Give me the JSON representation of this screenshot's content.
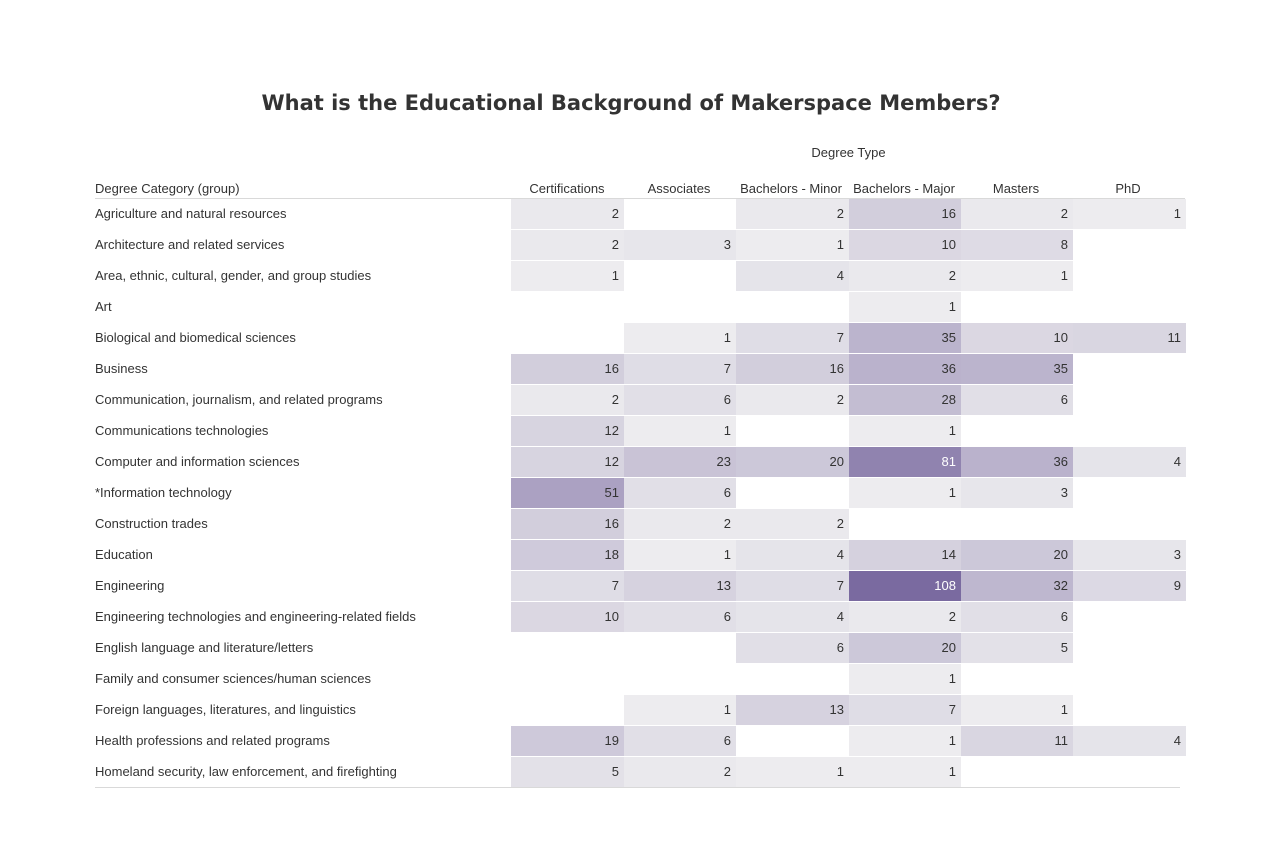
{
  "chart_data": {
    "type": "heatmap",
    "title": "What is the Educational Background of Makerspace Members?",
    "column_group_label": "Degree Type",
    "row_header_label": "Degree Category (group)",
    "columns": [
      "Certifications",
      "Associates",
      "Bachelors - Minor",
      "Bachelors - Major",
      "Masters",
      "PhD"
    ],
    "color_low": "#f1f1f2",
    "color_high": "#7a6aa0",
    "rows": [
      {
        "label": "Agriculture and natural resources",
        "values": [
          "2",
          "",
          "2",
          "16",
          "2",
          "1"
        ]
      },
      {
        "label": "Architecture and related services",
        "values": [
          "2",
          "3",
          "1",
          "10",
          "8",
          ""
        ]
      },
      {
        "label": "Area, ethnic, cultural, gender, and group studies",
        "values": [
          "1",
          "",
          "4",
          "2",
          "1",
          ""
        ]
      },
      {
        "label": "Art",
        "values": [
          "",
          "",
          "",
          "1",
          "",
          ""
        ]
      },
      {
        "label": "Biological and biomedical sciences",
        "values": [
          "",
          "1",
          "7",
          "35",
          "10",
          "11"
        ]
      },
      {
        "label": "Business",
        "values": [
          "16",
          "7",
          "16",
          "36",
          "35",
          ""
        ]
      },
      {
        "label": "Communication, journalism, and related programs",
        "values": [
          "2",
          "6",
          "2",
          "28",
          "6",
          ""
        ]
      },
      {
        "label": "Communications technologies",
        "values": [
          "12",
          "1",
          "",
          "1",
          "",
          ""
        ]
      },
      {
        "label": "Computer and information sciences",
        "values": [
          "12",
          "23",
          "20",
          "81",
          "36",
          "4"
        ]
      },
      {
        "label": "*Information technology",
        "values": [
          "51",
          "6",
          "",
          "1",
          "3",
          ""
        ]
      },
      {
        "label": "Construction trades",
        "values": [
          "16",
          "2",
          "2",
          "",
          "",
          ""
        ]
      },
      {
        "label": "Education",
        "values": [
          "18",
          "1",
          "4",
          "14",
          "20",
          "3"
        ]
      },
      {
        "label": "Engineering",
        "values": [
          "7",
          "13",
          "7",
          "108",
          "32",
          "9"
        ]
      },
      {
        "label": "Engineering technologies and engineering-related fields",
        "values": [
          "10",
          "6",
          "4",
          "2",
          "6",
          ""
        ]
      },
      {
        "label": "English language and literature/letters",
        "values": [
          "",
          "",
          "6",
          "20",
          "5",
          ""
        ]
      },
      {
        "label": "Family and consumer sciences/human sciences",
        "values": [
          "",
          "",
          "",
          "1",
          "",
          ""
        ]
      },
      {
        "label": "Foreign languages, literatures, and linguistics",
        "values": [
          "",
          "1",
          "13",
          "7",
          "1",
          ""
        ]
      },
      {
        "label": "Health professions and related programs",
        "values": [
          "19",
          "6",
          "",
          "1",
          "11",
          "4"
        ]
      },
      {
        "label": "Homeland security, law enforcement, and firefighting",
        "values": [
          "5",
          "2",
          "1",
          "1",
          "",
          ""
        ]
      }
    ]
  }
}
